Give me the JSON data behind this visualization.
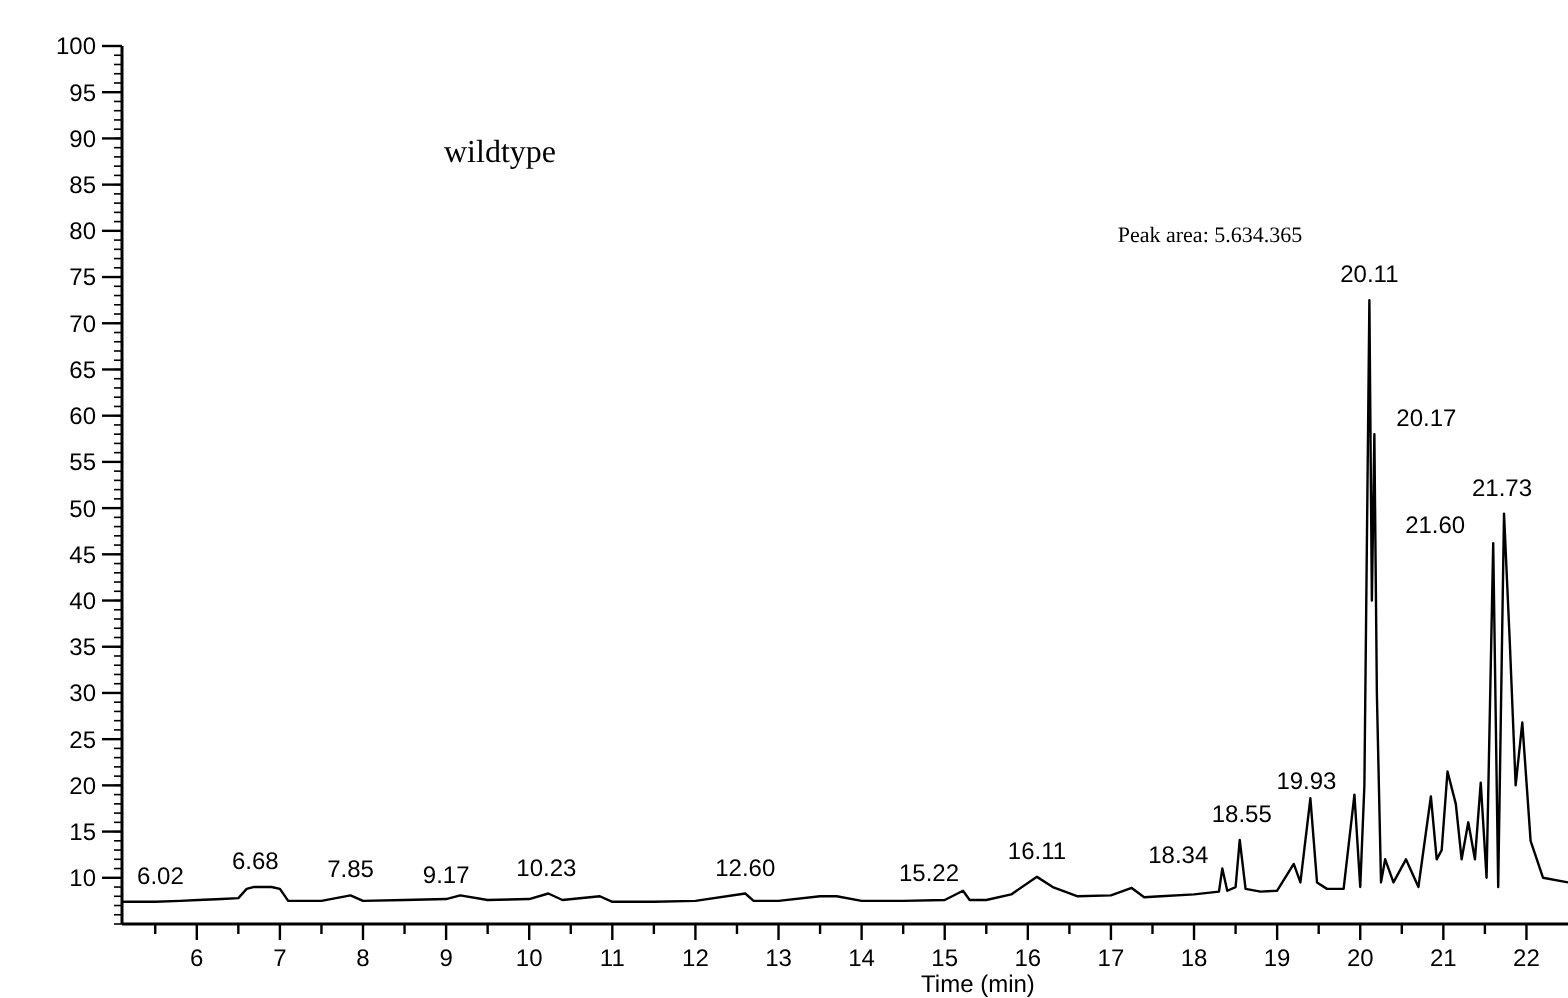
{
  "chart_data": {
    "type": "line",
    "xlabel": "Time (min)",
    "xlim": [
      5.1,
      22.5
    ],
    "ylim": [
      5,
      100
    ],
    "xticks": [
      {
        "value": 5.5,
        "label": null
      },
      6,
      {
        "value": 6.5,
        "label": null
      },
      7,
      {
        "value": 7.5,
        "label": null
      },
      8,
      {
        "value": 8.5,
        "label": null
      },
      9,
      {
        "value": 9.5,
        "label": null
      },
      10,
      {
        "value": 10.5,
        "label": null
      },
      11,
      {
        "value": 11.5,
        "label": null
      },
      12,
      {
        "value": 12.5,
        "label": null
      },
      13,
      {
        "value": 13.5,
        "label": null
      },
      14,
      {
        "value": 14.5,
        "label": null
      },
      15,
      {
        "value": 15.5,
        "label": null
      },
      16,
      {
        "value": 16.5,
        "label": null
      },
      17,
      {
        "value": 17.5,
        "label": null
      },
      18,
      {
        "value": 18.5,
        "label": null
      },
      19,
      {
        "value": 19.5,
        "label": null
      },
      20,
      {
        "value": 20.5,
        "label": null
      },
      21,
      {
        "value": 21.5,
        "label": null
      },
      22
    ],
    "yticks": [
      10,
      15,
      20,
      25,
      30,
      35,
      40,
      45,
      50,
      55,
      60,
      65,
      70,
      75,
      80,
      85,
      90,
      95,
      100
    ],
    "grid": false,
    "marker": "none",
    "line_style": "solid",
    "series": [
      {
        "color": "#000000",
        "x": [
          5.1,
          5.5,
          5.8,
          6.02,
          6.3,
          6.5,
          6.6,
          6.68,
          6.9,
          7.0,
          7.1,
          7.5,
          7.85,
          8.0,
          8.5,
          9.0,
          9.17,
          9.5,
          10.0,
          10.23,
          10.4,
          10.85,
          11.0,
          11.5,
          12.0,
          12.6,
          12.7,
          13.0,
          13.5,
          13.7,
          14.0,
          14.5,
          15.0,
          15.22,
          15.3,
          15.5,
          15.8,
          16.11,
          16.3,
          16.6,
          17.0,
          17.25,
          17.4,
          17.6,
          18.0,
          18.3,
          18.34,
          18.4,
          18.5,
          18.55,
          18.62,
          18.8,
          19.0,
          19.2,
          19.28,
          19.4,
          19.48,
          19.6,
          19.8,
          19.93,
          20.0,
          20.05,
          20.11,
          20.14,
          20.17,
          20.2,
          20.25,
          20.3,
          20.4,
          20.55,
          20.7,
          20.85,
          20.92,
          20.98,
          21.05,
          21.15,
          21.22,
          21.3,
          21.38,
          21.45,
          21.52,
          21.6,
          21.66,
          21.73,
          21.8,
          21.87,
          21.95,
          22.05,
          22.2,
          22.5
        ],
        "values": [
          7.4,
          7.4,
          7.5,
          7.6,
          7.7,
          7.8,
          8.8,
          9.0,
          9.0,
          8.8,
          7.5,
          7.5,
          8.1,
          7.5,
          7.6,
          7.7,
          8.1,
          7.6,
          7.7,
          8.3,
          7.6,
          8.0,
          7.4,
          7.4,
          7.5,
          8.3,
          7.5,
          7.5,
          8.0,
          8.0,
          7.5,
          7.5,
          7.6,
          8.6,
          7.6,
          7.6,
          8.2,
          10.1,
          9.0,
          8.0,
          8.1,
          8.9,
          7.9,
          8.0,
          8.2,
          8.5,
          11.0,
          8.6,
          9.0,
          14.1,
          8.8,
          8.5,
          8.6,
          11.5,
          9.5,
          18.6,
          9.5,
          8.8,
          8.8,
          19.0,
          9.0,
          20.0,
          72.5,
          40.0,
          58.0,
          30.0,
          9.5,
          12.0,
          9.5,
          12.0,
          9.0,
          18.8,
          12.0,
          13.0,
          21.5,
          18.0,
          12.0,
          16.0,
          12.0,
          20.3,
          10.0,
          46.2,
          9.0,
          49.4,
          35.4,
          20.0,
          26.8,
          14.0,
          10.0,
          9.5
        ]
      }
    ],
    "annotations": [
      "wildtype",
      "Peak area: 5.634.365",
      {
        "text": "6.02",
        "x": 6.02,
        "y": 7.6
      },
      {
        "text": "6.68",
        "x": 6.68,
        "y": 9.0
      },
      {
        "text": "7.85",
        "x": 7.85,
        "y": 8.1
      },
      {
        "text": "9.17",
        "x": 9.17,
        "y": 8.1
      },
      {
        "text": "10.23",
        "x": 10.23,
        "y": 8.3
      },
      {
        "text": "12.60",
        "x": 12.6,
        "y": 8.3
      },
      {
        "text": "15.22",
        "x": 15.22,
        "y": 8.6
      },
      {
        "text": "16.11",
        "x": 16.11,
        "y": 10.1
      },
      {
        "text": "18.34",
        "x": 18.34,
        "y": 11.0
      },
      {
        "text": "18.55",
        "x": 18.55,
        "y": 14.1
      },
      {
        "text": "19.93",
        "x": 19.93,
        "y": 19.0
      },
      {
        "text": "20.11",
        "x": 20.11,
        "y": 72.5
      },
      {
        "text": "20.17",
        "x": 20.17,
        "y": 58.0
      },
      {
        "text": "21.60",
        "x": 21.6,
        "y": 46.2
      },
      {
        "text": "21.73",
        "x": 21.73,
        "y": 49.4
      }
    ]
  }
}
